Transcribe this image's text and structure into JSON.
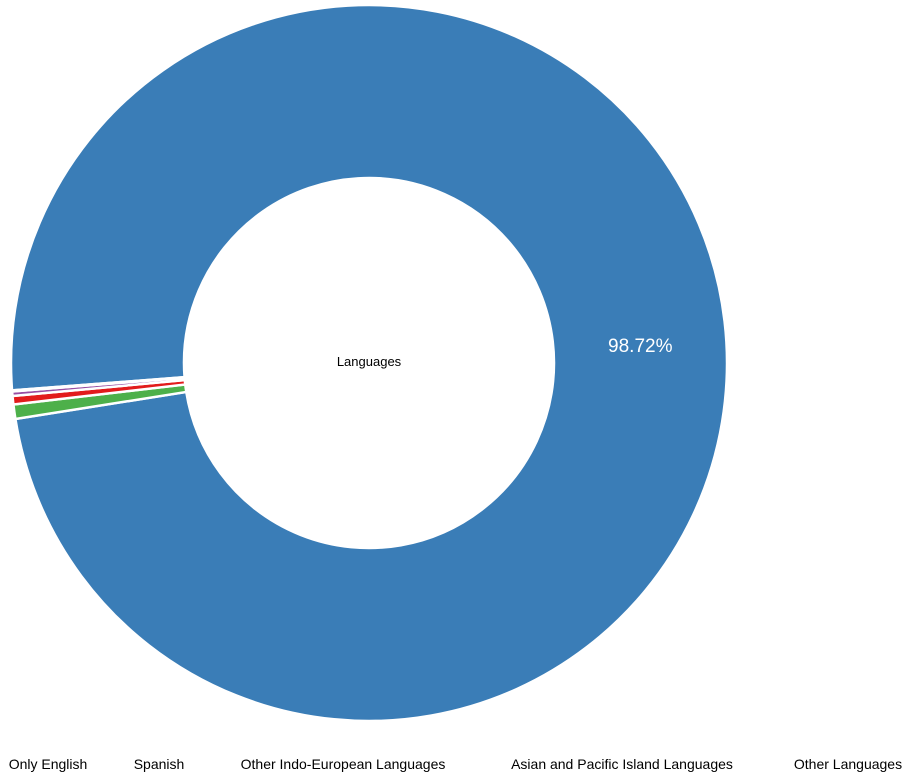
{
  "chart_data": {
    "type": "pie",
    "center_label": "Languages",
    "categories": [
      "Only English",
      "Spanish",
      "Other Indo-European Languages",
      "Asian and Pacific Island Languages",
      "Other Languages"
    ],
    "values": [
      98.72,
      0.65,
      0.38,
      0.2,
      0.05
    ],
    "colors": [
      "#3a7db7",
      "#4db04a",
      "#e21b1c",
      "#984ea3",
      "#ff7f00"
    ],
    "data_labels": [
      "98.72%",
      "",
      "",
      "",
      ""
    ],
    "legend_position": "bottom"
  }
}
